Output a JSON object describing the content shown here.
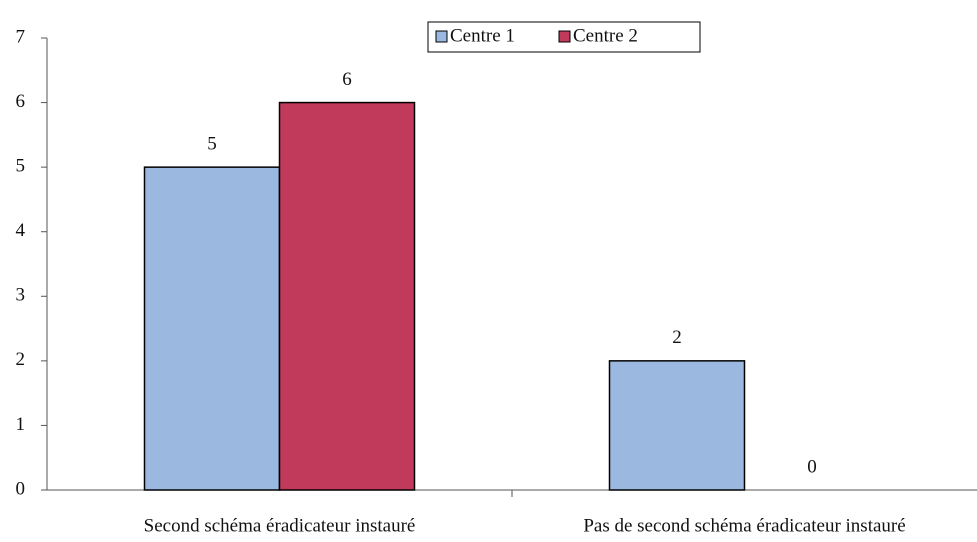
{
  "chart_data": {
    "type": "bar",
    "categories": [
      "Second schéma éradicateur instauré",
      "Pas de second schéma éradicateur instauré"
    ],
    "series": [
      {
        "name": "Centre 1",
        "color": "#9bb8e0",
        "values": [
          5,
          2
        ]
      },
      {
        "name": "Centre 2",
        "color": "#c13a5b",
        "values": [
          6,
          0
        ]
      }
    ],
    "ylim": [
      0,
      7
    ],
    "yticks": [
      0,
      1,
      2,
      3,
      4,
      5,
      6,
      7
    ],
    "grid": false,
    "legend": "top"
  }
}
